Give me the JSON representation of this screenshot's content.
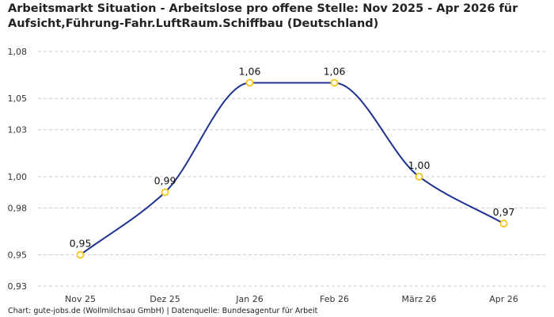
{
  "title_line1": "Arbeitsmarkt Situation - Arbeitslose pro offene Stelle: Nov 2025 - Apr 2026 für",
  "title_line2": "Aufsicht,Führung-Fahr.LuftRaum.Schiffbau (Deutschland)",
  "footer": "Chart: gute-jobs.de (Wollmilchsau GmbH) | Datenquelle: Bundesagentur für Arbeit",
  "colors": {
    "line": "#1f3391",
    "marker": "#f5c518",
    "grid": "#cccccc"
  },
  "chart_data": {
    "type": "line",
    "categories": [
      "Nov 25",
      "Dez 25",
      "Jan 26",
      "Feb 26",
      "März 26",
      "Apr 26"
    ],
    "series": [
      {
        "values": [
          0.95,
          0.99,
          1.06,
          1.06,
          1.0,
          0.97
        ],
        "labels": [
          "0,95",
          "0,99",
          "1,06",
          "1,06",
          "1,00",
          "0,97"
        ]
      }
    ],
    "ylim": [
      0.93,
      1.08
    ],
    "yticks": [
      0.93,
      0.95,
      0.98,
      1.0,
      1.03,
      1.05,
      1.08
    ],
    "ytick_labels": [
      "0,93",
      "0,95",
      "0,98",
      "1,00",
      "1,03",
      "1,05",
      "1,08"
    ],
    "grid": true,
    "xlabel": "",
    "ylabel": ""
  }
}
